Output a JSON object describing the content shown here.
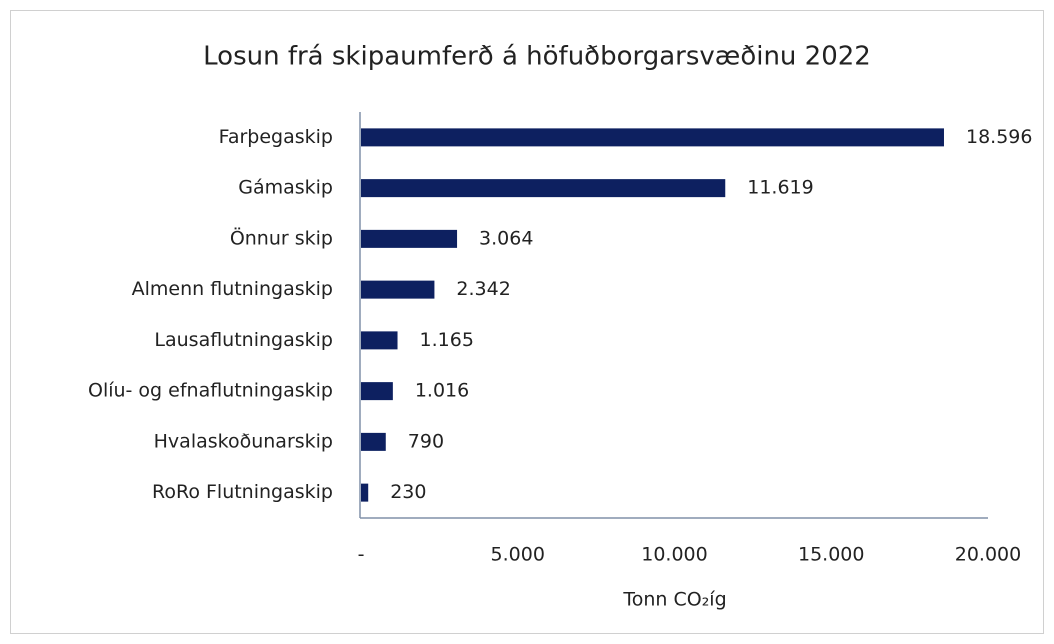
{
  "chart_data": {
    "type": "bar",
    "orientation": "horizontal",
    "title": "Losun frá skipaumferð á höfuðborgarsvæðinu 2022",
    "categories": [
      "Farþegaskip",
      "Gámaskip",
      "Önnur skip",
      "Almenn flutningaskip",
      "Lausaflutningaskip",
      "Olíu- og efnaflutningaskip",
      "Hvalaskoðunarskip",
      "RoRo Flutningaskip"
    ],
    "values": [
      18596,
      11619,
      3064,
      2342,
      1165,
      1016,
      790,
      230
    ],
    "value_labels": [
      "18.596",
      "11.619",
      "3.064",
      "2.342",
      "1.165",
      "1.016",
      "790",
      "230"
    ],
    "color": "#0d2060",
    "xlabel": "Tonn CO₂íg",
    "xlim": [
      0,
      20000
    ],
    "xticks": [
      {
        "value": 0,
        "label": "-"
      },
      {
        "value": 5000,
        "label": "5.000"
      },
      {
        "value": 10000,
        "label": "10.000"
      },
      {
        "value": 15000,
        "label": "15.000"
      },
      {
        "value": 20000,
        "label": "20.000"
      }
    ],
    "grid": false
  }
}
